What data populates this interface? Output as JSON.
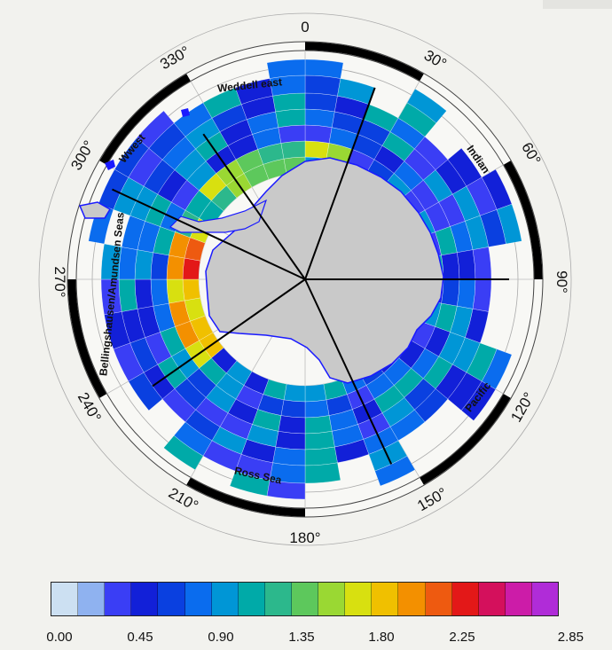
{
  "map": {
    "degree_labels": [
      "0",
      "30°",
      "60°",
      "90°",
      "120°",
      "150°",
      "180°",
      "210°",
      "240°",
      "270°",
      "300°",
      "330°"
    ],
    "sector_labels": [
      "Weddell east",
      "Indian",
      "Pacific",
      "Ross Sea",
      "Bellingshausen/Amundsen Seas",
      "Wwest"
    ]
  },
  "colorbar": {
    "ticks": [
      "0.00",
      "0.45",
      "0.90",
      "1.35",
      "1.80",
      "2.25",
      "2.85"
    ],
    "min": 0.0,
    "max": 2.85,
    "colors": [
      "#cce0f2",
      "#8fb2f0",
      "#3a3ef5",
      "#1220d8",
      "#0a40e0",
      "#0a6cee",
      "#0096d6",
      "#00aaa8",
      "#2cb88c",
      "#5dc85c",
      "#9ad833",
      "#d8e010",
      "#f0c000",
      "#f39000",
      "#ee5a10",
      "#e31818",
      "#d4105c",
      "#cc1ca8",
      "#b02cd8"
    ]
  },
  "colors": {
    "land": "#c9c9c9",
    "background": "#f2f2ee",
    "coast": "#1a1aff"
  }
}
